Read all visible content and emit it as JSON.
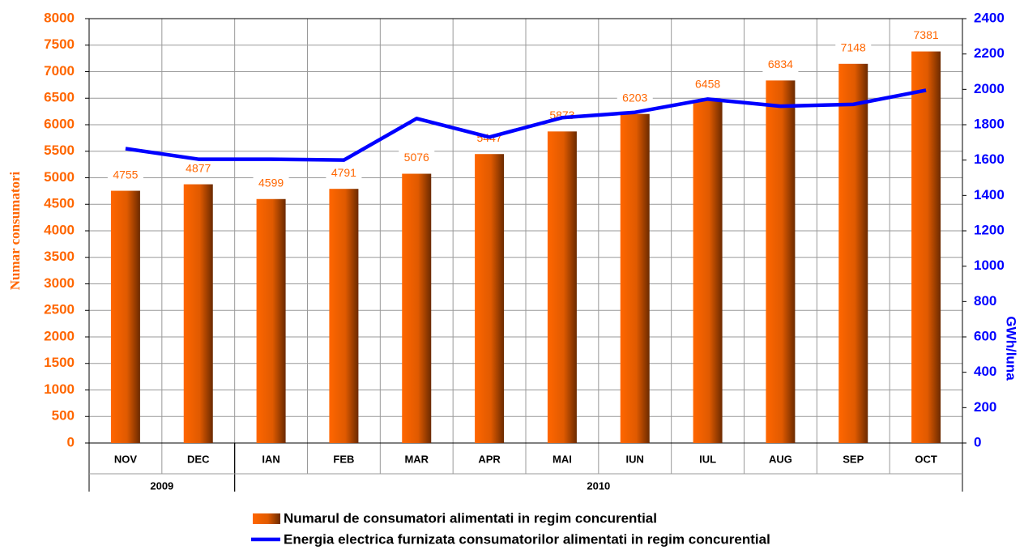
{
  "chart_data": {
    "type": "bar-line",
    "categories": [
      "NOV",
      "DEC",
      "IAN",
      "FEB",
      "MAR",
      "APR",
      "MAI",
      "IUN",
      "IUL",
      "AUG",
      "SEP",
      "OCT"
    ],
    "year_groups": [
      {
        "label": "2009",
        "count": 2
      },
      {
        "label": "2010",
        "count": 10
      }
    ],
    "y_label": "Numar consumatori",
    "y2_label": "GWh/luna",
    "ylim": [
      0,
      8000
    ],
    "yticks": [
      0,
      500,
      1000,
      1500,
      2000,
      2500,
      3000,
      3500,
      4000,
      4500,
      5000,
      5500,
      6000,
      6500,
      7000,
      7500,
      8000
    ],
    "y2lim": [
      0,
      2400
    ],
    "y2ticks": [
      0,
      200,
      400,
      600,
      800,
      1000,
      1200,
      1400,
      1600,
      1800,
      2000,
      2200,
      2400
    ],
    "grid": true,
    "series": [
      {
        "name": "Numarul de consumatori alimentati in regim concurential",
        "type": "bar",
        "color": "#ff6600",
        "values": [
          4755,
          4877,
          4599,
          4791,
          5076,
          5447,
          5873,
          6203,
          6458,
          6834,
          7148,
          7381
        ]
      },
      {
        "name": "Energia electrica furnizata consumatorilor alimentati in regim concurential",
        "type": "line",
        "axis": "y2",
        "color": "#0000ff",
        "values": [
          1665,
          1605,
          1605,
          1600,
          1835,
          1730,
          1840,
          1870,
          1945,
          1905,
          1915,
          1995
        ]
      }
    ]
  }
}
